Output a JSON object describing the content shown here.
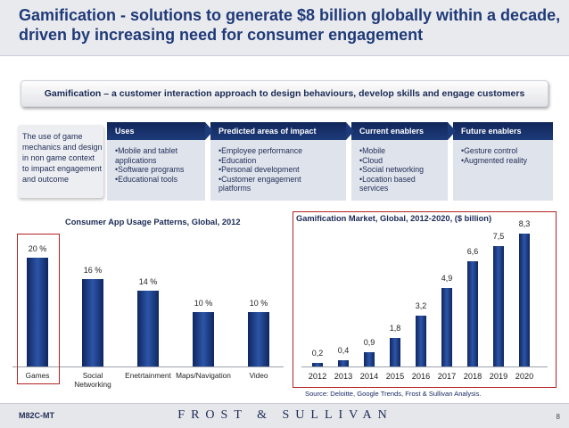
{
  "header": {
    "title": "Gamification - solutions to generate $8 billion globally within a decade, driven by increasing need for consumer engagement"
  },
  "banner": {
    "text": "Gamification – a customer interaction approach to design behaviours, develop skills and engage customers"
  },
  "intro": {
    "text": "The use of game mechanics and design in non game context to impact engagement and outcome"
  },
  "columns": [
    {
      "header": "Uses",
      "items": [
        "•Mobile and tablet applications",
        "•Software programs",
        "•Educational tools"
      ]
    },
    {
      "header": "Predicted areas of impact",
      "items": [
        "•Employee performance",
        "•Education",
        "•Personal development",
        "•Customer engagement platforms"
      ]
    },
    {
      "header": "Current enablers",
      "items": [
        "•Mobile",
        "•Cloud",
        "•Social networking",
        "•Location based services"
      ]
    },
    {
      "header": "Future enablers",
      "items": [
        "•Gesture control",
        "•Augmented reality"
      ]
    }
  ],
  "chart_data": [
    {
      "type": "bar",
      "title": "Consumer App Usage Patterns, Global, 2012",
      "categories": [
        "Games",
        "Social Networking",
        "Enetrtainment",
        "Maps/Navigation",
        "Video"
      ],
      "values": [
        20,
        16,
        14,
        10,
        10
      ],
      "labels": [
        "20 %",
        "16 %",
        "14 %",
        "10 %",
        "10 %"
      ],
      "ylim": [
        0,
        21
      ],
      "highlight": "Games"
    },
    {
      "type": "bar",
      "title": "Gamification Market, Global, 2012-2020, ($ billion)",
      "categories": [
        "2012",
        "2013",
        "2014",
        "2015",
        "2016",
        "2017",
        "2018",
        "2019",
        "2020"
      ],
      "values": [
        0.2,
        0.4,
        0.9,
        1.8,
        3.2,
        4.9,
        6.6,
        7.5,
        8.3
      ],
      "labels": [
        "0,2",
        "0,4",
        "0,9",
        "1,8",
        "3,2",
        "4,9",
        "6,6",
        "7,5",
        "8,3"
      ],
      "ylim": [
        0,
        8.3
      ]
    }
  ],
  "source": "Source: Deloitte, Google Trends, Frost & Sullivan Analysis.",
  "footer": {
    "code": "M82C-MT",
    "brand": "FROST & SULLIVAN",
    "page": "8"
  },
  "colors": {
    "title": "#1f3a78",
    "bar": "#1b3d85",
    "highlight_box": "#b52222"
  }
}
